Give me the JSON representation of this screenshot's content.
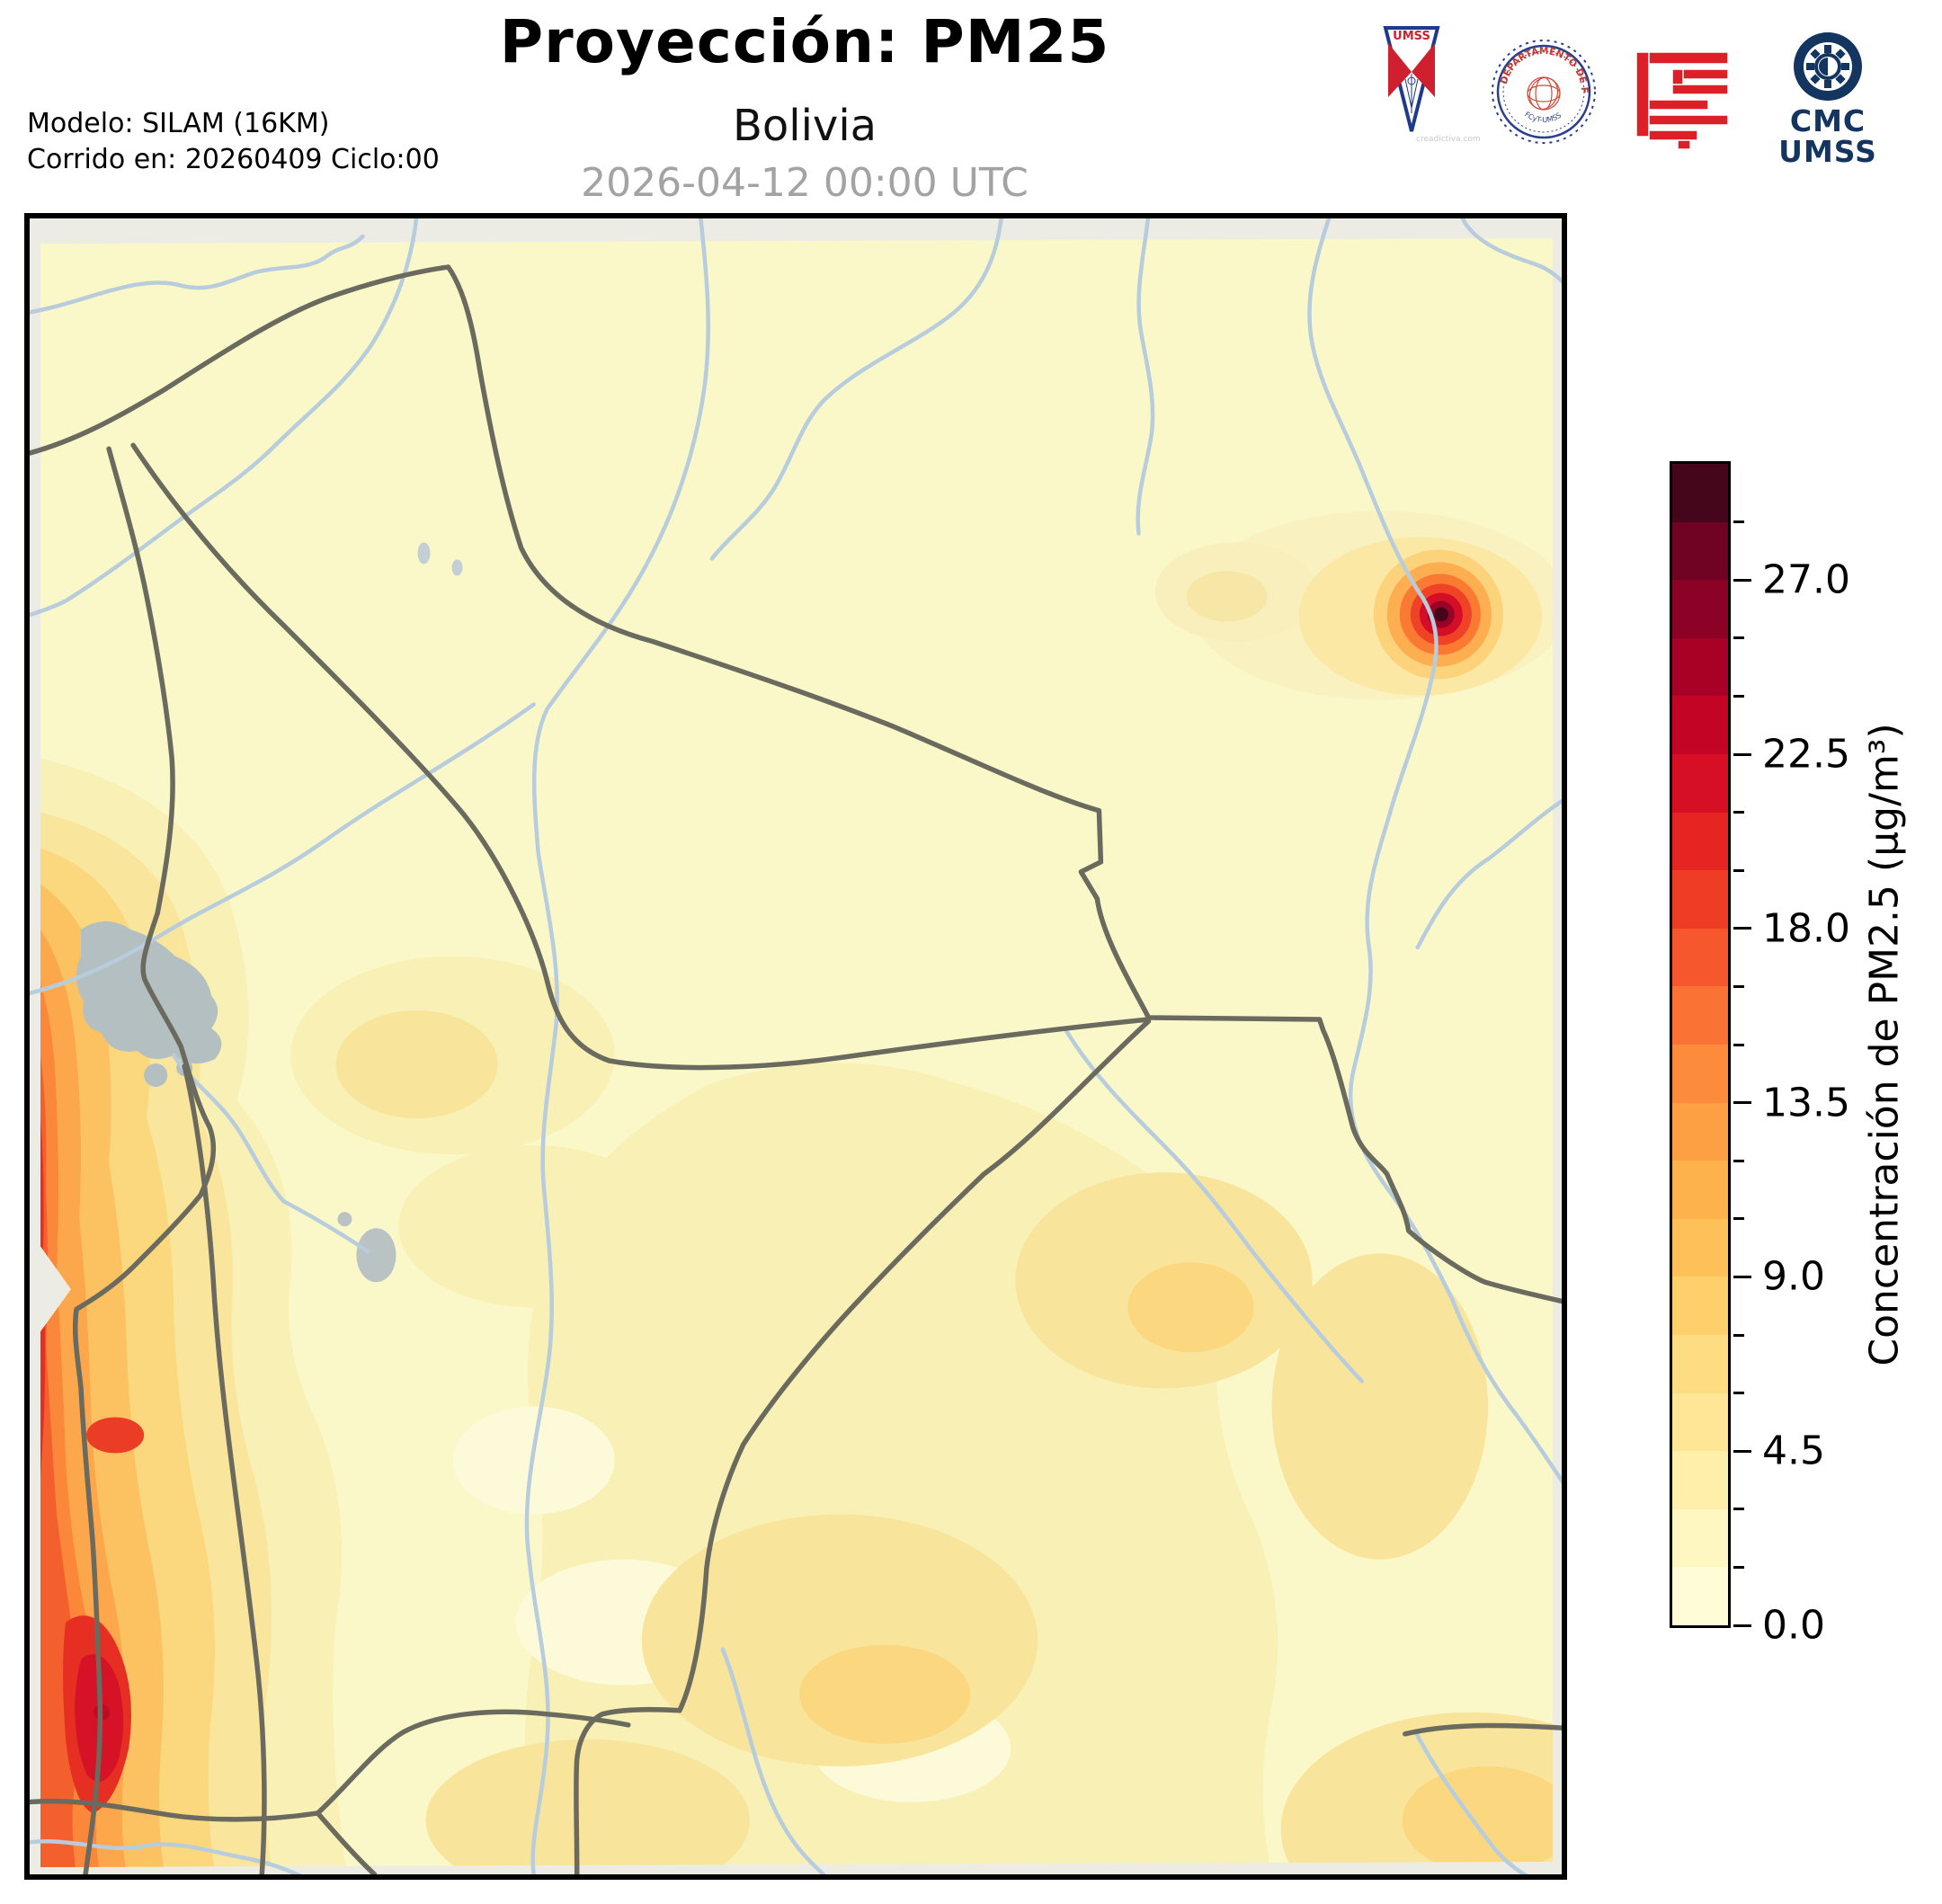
{
  "header": {
    "title": "Proyección: PM25",
    "subtitle": "Bolivia",
    "valid_time": "2026-04-12 00:00 UTC",
    "model_line1": "Modelo: SILAM (16KM)",
    "model_line2": "Corrido en: 20260409 Ciclo:00"
  },
  "logos": {
    "pennant_text": "UMSS",
    "pennant_watermark": "creadictiva.com",
    "seal_top": "DEPARTAMENTO DE FÍSICA",
    "seal_bottom": "FCyT-UMSS",
    "cmc_line1": "CMC",
    "cmc_line2": "UMSS"
  },
  "colorbar": {
    "label": "Concentración de PM2.5 (µg/m³)",
    "min": 0,
    "max": 30,
    "step": 1.5,
    "major_step": 4.5,
    "tick_labels": [
      "0.0",
      "4.5",
      "9.0",
      "13.5",
      "18.0",
      "22.5",
      "27.0"
    ],
    "colors_bottom_to_top": [
      "#FFFDD8",
      "#FEF7C1",
      "#FEEFAB",
      "#FEE696",
      "#FEDC81",
      "#FED06C",
      "#FEC15A",
      "#FEB24C",
      "#FDA044",
      "#FC8B3B",
      "#FA7234",
      "#F6572C",
      "#EF3D25",
      "#E62421",
      "#D60F24",
      "#C30425",
      "#A90126",
      "#8C0126",
      "#700323",
      "#45051B"
    ]
  },
  "map_colors": {
    "frame": "#000000",
    "margin_gray": "#ECECE5",
    "base_yellow": "#FAF8C8",
    "river_blue": "#B7CCDC",
    "border_gray": "#6B6A5E",
    "lake_gray": "#B3BFC0",
    "hotspot_core": "#45051B"
  },
  "chart_data": {
    "type": "heatmap",
    "title": "Proyección: PM25",
    "region": "Bolivia",
    "valid_time": "2026-04-12 00:00 UTC",
    "model": "SILAM (16KM)",
    "run": "Corrido en: 20260409 Ciclo:00",
    "variable": "Concentración de PM2.5",
    "units": "µg/m³",
    "colorbar_ticks": [
      0.0,
      4.5,
      9.0,
      13.5,
      18.0,
      22.5,
      27.0
    ],
    "scale_range": [
      0,
      30
    ],
    "legend_position": "right",
    "features": [
      {
        "name": "background-field",
        "location": "most of Bolivia (north, center, east)",
        "approx_value_ugm3": 1.5
      },
      {
        "name": "andes-west-band",
        "location": "western edge along Chile/Andes, elongated N-S",
        "approx_max_ugm3": 22
      },
      {
        "name": "southwest-core",
        "location": "lower west edge",
        "approx_max_ugm3": 24
      },
      {
        "name": "point-hotspot",
        "location": "northeast Bolivia on a river",
        "approx_max_ugm3": 30
      },
      {
        "name": "south-center-wash",
        "location": "southern half, diffuse",
        "approx_value_ugm3": 6
      }
    ]
  }
}
